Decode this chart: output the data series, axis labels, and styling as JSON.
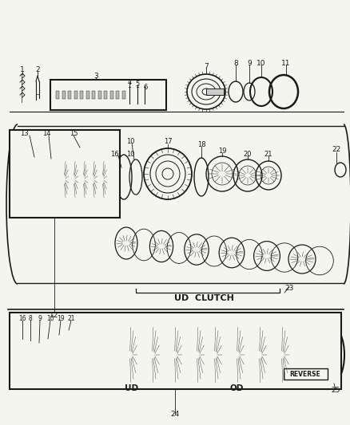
{
  "bg_color": "#f5f5f0",
  "line_color": "#1a1a1a",
  "gray_fill": "#888888",
  "light_gray": "#cccccc",
  "white": "#ffffff",
  "section_labels": {
    "ud_clutch": "UD  CLUTCH",
    "ud": "UD",
    "od": "OD",
    "reverse": "REVERSE"
  }
}
